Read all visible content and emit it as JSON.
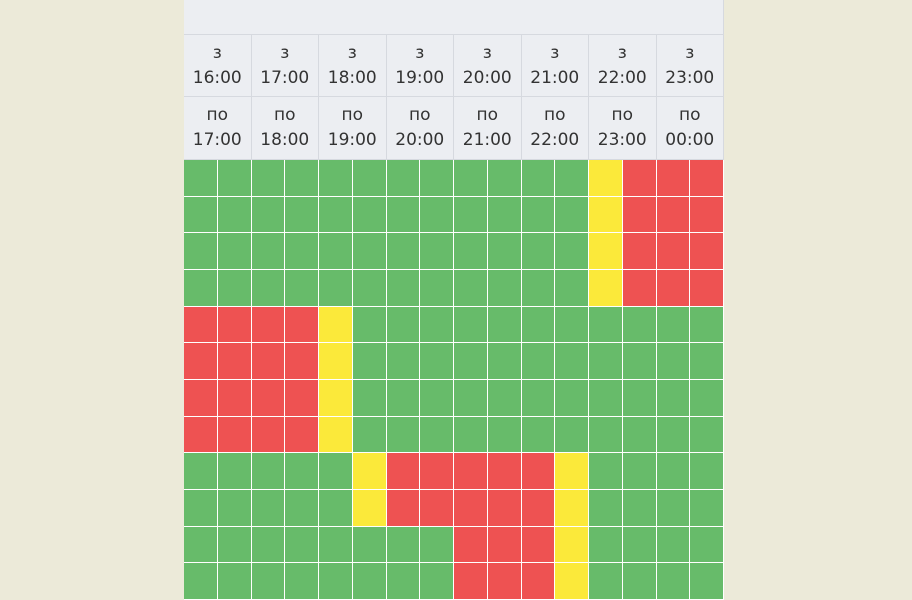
{
  "header": {
    "columns": [
      {
        "from_prefix": "з",
        "from_time": "16:00",
        "to_prefix": "по",
        "to_time": "17:00"
      },
      {
        "from_prefix": "з",
        "from_time": "17:00",
        "to_prefix": "по",
        "to_time": "18:00"
      },
      {
        "from_prefix": "з",
        "from_time": "18:00",
        "to_prefix": "по",
        "to_time": "19:00"
      },
      {
        "from_prefix": "з",
        "from_time": "19:00",
        "to_prefix": "по",
        "to_time": "20:00"
      },
      {
        "from_prefix": "з",
        "from_time": "20:00",
        "to_prefix": "по",
        "to_time": "21:00"
      },
      {
        "from_prefix": "з",
        "from_time": "21:00",
        "to_prefix": "по",
        "to_time": "22:00"
      },
      {
        "from_prefix": "з",
        "from_time": "22:00",
        "to_prefix": "по",
        "to_time": "23:00"
      },
      {
        "from_prefix": "з",
        "from_time": "23:00",
        "to_prefix": "по",
        "to_time": "00:00"
      }
    ]
  },
  "grid": {
    "colors": {
      "g": "#67bb6a",
      "y": "#fbe93a",
      "r": "#ee5252"
    },
    "rows": [
      "ggggggggggggyrrr",
      "ggggggggggggyrrr",
      "ggggggggggggyrrr",
      "ggggggggggggyrrr",
      "rrrryggggggggggg",
      "rrrryggggggggggg",
      "rrrryggggggggggg",
      "rrrryggggggggggg",
      "gggggyrrrrrygggg",
      "gggggyrrrrrygggg",
      "ggggggggrrrygggg",
      "ggggggggrrrygggg"
    ]
  }
}
